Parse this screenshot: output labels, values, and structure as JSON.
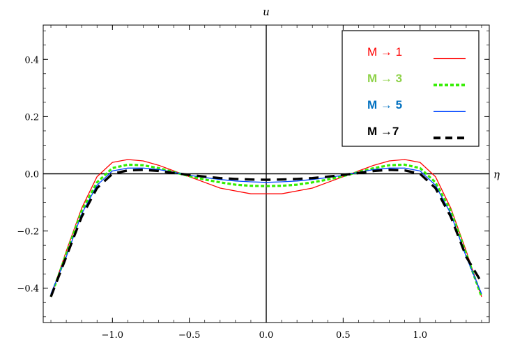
{
  "chart_data": {
    "type": "line",
    "title": "",
    "xlabel": "η",
    "ylabel": "u",
    "xlim": [
      -1.45,
      1.45
    ],
    "ylim": [
      -0.52,
      0.52
    ],
    "xticks": [
      -1.0,
      -0.5,
      0.0,
      0.5,
      1.0
    ],
    "xtick_labels": [
      "−1.0",
      "−0.5",
      "0.0",
      "0.5",
      "1.0"
    ],
    "yticks": [
      -0.4,
      -0.2,
      0.0,
      0.2,
      0.4
    ],
    "ytick_labels": [
      "−0.4",
      "−0.2",
      "0.0",
      "0.2",
      "0.4"
    ],
    "grid": false,
    "legend_position": "top-right",
    "series": [
      {
        "name": "M → 1",
        "color": "#ff0000",
        "style": "solid",
        "x": [
          -1.4,
          -1.3,
          -1.2,
          -1.1,
          -1.0,
          -0.9,
          -0.8,
          -0.7,
          -0.6,
          -0.5,
          -0.4,
          -0.3,
          -0.2,
          -0.1,
          0.0,
          0.1,
          0.2,
          0.3,
          0.4,
          0.5,
          0.6,
          0.7,
          0.8,
          0.9,
          1.0,
          1.1,
          1.2,
          1.3,
          1.4
        ],
        "y": [
          -0.43,
          -0.27,
          -0.12,
          -0.01,
          0.04,
          0.05,
          0.045,
          0.03,
          0.01,
          -0.01,
          -0.03,
          -0.05,
          -0.06,
          -0.07,
          -0.07,
          -0.07,
          -0.06,
          -0.05,
          -0.03,
          -0.01,
          0.01,
          0.03,
          0.045,
          0.05,
          0.04,
          -0.01,
          -0.12,
          -0.27,
          -0.43
        ]
      },
      {
        "name": "M → 3",
        "color": "#33ee00",
        "style": "dotted",
        "x": [
          -1.4,
          -1.3,
          -1.2,
          -1.1,
          -1.0,
          -0.9,
          -0.8,
          -0.7,
          -0.6,
          -0.5,
          -0.4,
          -0.3,
          -0.2,
          -0.1,
          0.0,
          0.1,
          0.2,
          0.3,
          0.4,
          0.5,
          0.6,
          0.7,
          0.8,
          0.9,
          1.0,
          1.1,
          1.2,
          1.3,
          1.4
        ],
        "y": [
          -0.43,
          -0.28,
          -0.13,
          -0.03,
          0.02,
          0.032,
          0.03,
          0.02,
          0.006,
          -0.008,
          -0.02,
          -0.03,
          -0.038,
          -0.042,
          -0.043,
          -0.042,
          -0.038,
          -0.03,
          -0.02,
          -0.008,
          0.006,
          0.02,
          0.03,
          0.032,
          0.02,
          -0.03,
          -0.13,
          -0.28,
          -0.43
        ]
      },
      {
        "name": "M → 5",
        "color": "#0044ff",
        "style": "solid",
        "x": [
          -1.4,
          -1.3,
          -1.2,
          -1.1,
          -1.0,
          -0.9,
          -0.8,
          -0.7,
          -0.6,
          -0.5,
          -0.4,
          -0.3,
          -0.2,
          -0.1,
          0.0,
          0.1,
          0.2,
          0.3,
          0.4,
          0.5,
          0.6,
          0.7,
          0.8,
          0.9,
          1.0,
          1.1,
          1.2,
          1.3,
          1.4
        ],
        "y": [
          -0.42,
          -0.29,
          -0.14,
          -0.04,
          0.01,
          0.02,
          0.02,
          0.015,
          0.005,
          -0.005,
          -0.013,
          -0.02,
          -0.025,
          -0.028,
          -0.03,
          -0.028,
          -0.025,
          -0.02,
          -0.013,
          -0.005,
          0.005,
          0.015,
          0.02,
          0.02,
          0.01,
          -0.04,
          -0.14,
          -0.29,
          -0.42
        ]
      },
      {
        "name": "M →7",
        "color": "#000000",
        "style": "dashed",
        "x": [
          -1.4,
          -1.3,
          -1.2,
          -1.1,
          -1.0,
          -0.9,
          -0.8,
          -0.7,
          -0.6,
          -0.5,
          -0.4,
          -0.3,
          -0.2,
          -0.1,
          0.0,
          0.1,
          0.2,
          0.3,
          0.4,
          0.5,
          0.6,
          0.7,
          0.8,
          0.9,
          1.0,
          1.1,
          1.2,
          1.3,
          1.4
        ],
        "y": [
          -0.43,
          -0.29,
          -0.15,
          -0.05,
          0.0,
          0.012,
          0.014,
          0.01,
          0.003,
          -0.004,
          -0.01,
          -0.015,
          -0.018,
          -0.02,
          -0.021,
          -0.02,
          -0.018,
          -0.015,
          -0.01,
          -0.004,
          0.003,
          0.01,
          0.014,
          0.012,
          0.0,
          -0.05,
          -0.15,
          -0.29,
          -0.38
        ]
      }
    ]
  }
}
